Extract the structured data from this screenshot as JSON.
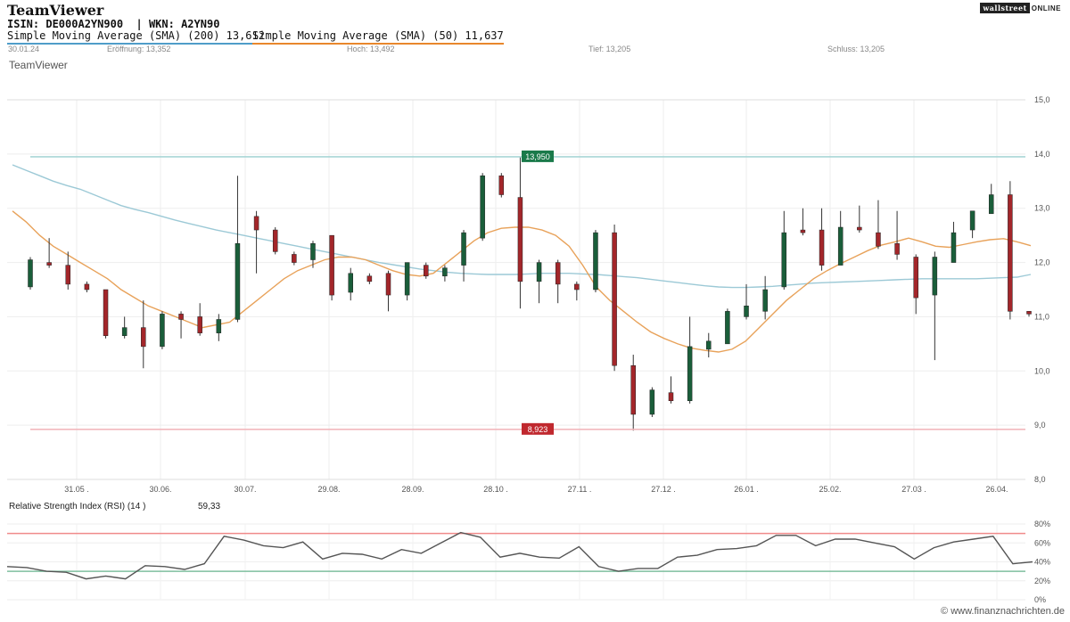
{
  "header": {
    "title": "TeamViewer",
    "isin_line": "ISIN: DE000A2YN900  | WKN: A2YN90",
    "sma200_label": "Simple Moving Average (SMA) (200) 13,612",
    "sma50_label": "Simple Moving Average (SMA) (50) 11,637",
    "subtitle": "TeamViewer",
    "ohlc": {
      "date": "30.01.24",
      "open": "Eröffnung: 13,352",
      "high": "Hoch: 13,492",
      "low": "Tief: 13,205",
      "close": "Schluss: 13,205"
    }
  },
  "brand": {
    "part1": "wallstreet",
    "part2": "ONLINE"
  },
  "rsi": {
    "label": "Relative Strength Index (RSI) (14 )",
    "value": "59,33"
  },
  "watermark": "© www.finanznachrichten.de",
  "colors": {
    "up": "#1a5e3a",
    "down": "#a3262a",
    "sma200": "#9cc9d6",
    "sma50": "#e8a25a",
    "high_line": "#a9d6d6",
    "low_line": "#f2b8bd",
    "rsi_line": "#555555",
    "rsi_upper": "#f08a8a",
    "rsi_lower": "#7fbf9f"
  },
  "chart_data": [
    {
      "type": "candlestick",
      "title": "TeamViewer",
      "ylim": [
        8.0,
        15.0
      ],
      "y_ticks": [
        "8,0",
        "9,0",
        "10,0",
        "11,0",
        "12,0",
        "13,0",
        "14,0",
        "15,0"
      ],
      "x_ticks": [
        "31.05 .",
        "30.06.",
        "30.07.",
        "29.08.",
        "28.09.",
        "28.10 .",
        "27.11 .",
        "27.12 .",
        "26.01 .",
        "25.02.",
        "27.03 .",
        "26.04."
      ],
      "grid": true,
      "high_line": {
        "value": 13.95,
        "label": "13,950"
      },
      "low_line": {
        "value": 8.923,
        "label": "8,923"
      },
      "candles": [
        [
          11.55,
          12.05,
          11.5,
          12.1
        ],
        [
          12.0,
          11.95,
          11.9,
          12.45
        ],
        [
          11.95,
          11.6,
          11.5,
          12.2
        ],
        [
          11.6,
          11.5,
          11.45,
          11.65
        ],
        [
          11.5,
          10.65,
          10.6,
          11.5
        ],
        [
          10.65,
          10.8,
          10.6,
          11.0
        ],
        [
          10.8,
          10.45,
          10.05,
          11.3
        ],
        [
          10.45,
          11.05,
          10.4,
          11.1
        ],
        [
          11.05,
          10.95,
          10.6,
          11.1
        ],
        [
          11.0,
          10.7,
          10.65,
          11.25
        ],
        [
          10.7,
          10.95,
          10.55,
          11.05
        ],
        [
          10.95,
          12.35,
          10.9,
          13.6
        ],
        [
          12.85,
          12.6,
          11.8,
          12.95
        ],
        [
          12.6,
          12.2,
          12.15,
          12.65
        ],
        [
          12.15,
          12.0,
          11.95,
          12.2
        ],
        [
          12.05,
          12.35,
          11.9,
          12.4
        ],
        [
          12.5,
          11.4,
          11.3,
          12.5
        ],
        [
          11.45,
          11.8,
          11.3,
          11.9
        ],
        [
          11.75,
          11.65,
          11.6,
          11.8
        ],
        [
          11.8,
          11.4,
          11.1,
          11.85
        ],
        [
          11.4,
          12.0,
          11.3,
          12.0
        ],
        [
          11.95,
          11.75,
          11.7,
          12.0
        ],
        [
          11.75,
          11.9,
          11.65,
          11.95
        ],
        [
          11.95,
          12.55,
          11.65,
          12.6
        ],
        [
          12.45,
          13.6,
          12.4,
          13.65
        ],
        [
          13.6,
          13.25,
          13.2,
          13.65
        ],
        [
          13.2,
          11.65,
          11.15,
          13.95
        ],
        [
          11.65,
          12.0,
          11.25,
          12.05
        ],
        [
          12.0,
          11.6,
          11.25,
          12.05
        ],
        [
          11.6,
          11.5,
          11.3,
          11.65
        ],
        [
          11.5,
          12.55,
          11.45,
          12.6
        ],
        [
          12.55,
          10.1,
          10.0,
          12.7
        ],
        [
          10.1,
          9.2,
          8.9,
          10.3
        ],
        [
          9.2,
          9.65,
          9.15,
          9.7
        ],
        [
          9.6,
          9.45,
          9.4,
          9.9
        ],
        [
          9.45,
          10.45,
          9.4,
          11.0
        ],
        [
          10.4,
          10.55,
          10.25,
          10.7
        ],
        [
          10.5,
          11.1,
          10.5,
          11.15
        ],
        [
          11.0,
          11.2,
          10.95,
          11.6
        ],
        [
          11.1,
          11.5,
          10.95,
          11.75
        ],
        [
          11.55,
          12.55,
          11.5,
          12.95
        ],
        [
          12.6,
          12.55,
          12.5,
          13.0
        ],
        [
          12.6,
          11.95,
          11.85,
          13.0
        ],
        [
          11.95,
          12.65,
          11.95,
          12.95
        ],
        [
          12.65,
          12.6,
          12.55,
          13.05
        ],
        [
          12.55,
          12.3,
          12.25,
          13.15
        ],
        [
          12.35,
          12.15,
          12.05,
          12.95
        ],
        [
          12.1,
          11.35,
          11.05,
          12.15
        ],
        [
          11.4,
          12.1,
          10.2,
          12.2
        ],
        [
          12.0,
          12.55,
          12.0,
          12.75
        ],
        [
          12.6,
          12.95,
          12.45,
          12.95
        ],
        [
          12.9,
          13.25,
          12.9,
          13.45
        ],
        [
          13.25,
          11.1,
          10.95,
          13.5
        ],
        [
          11.1,
          11.05,
          11.0,
          11.1
        ]
      ],
      "series": [
        {
          "name": "Simple Moving Average (SMA) (200)",
          "values": [
            13.8,
            13.7,
            13.6,
            13.5,
            13.42,
            13.35,
            13.25,
            13.15,
            13.05,
            12.98,
            12.92,
            12.85,
            12.78,
            12.72,
            12.66,
            12.6,
            12.55,
            12.5,
            12.45,
            12.4,
            12.35,
            12.3,
            12.25,
            12.2,
            12.15,
            12.1,
            12.05,
            12.0,
            11.96,
            11.92,
            11.88,
            11.85,
            11.82,
            11.8,
            11.79,
            11.78,
            11.78,
            11.78,
            11.79,
            11.8,
            11.8,
            11.8,
            11.79,
            11.78,
            11.76,
            11.74,
            11.72,
            11.69,
            11.66,
            11.63,
            11.6,
            11.57,
            11.55,
            11.54,
            11.54,
            11.55,
            11.56,
            11.58,
            11.6,
            11.62,
            11.63,
            11.64,
            11.65,
            11.66,
            11.67,
            11.68,
            11.69,
            11.7,
            11.7,
            11.7,
            11.7,
            11.7,
            11.71,
            11.72,
            11.73,
            11.78
          ]
        },
        {
          "name": "Simple Moving Average (SMA) (50)",
          "values": [
            12.95,
            12.75,
            12.5,
            12.3,
            12.15,
            12.0,
            11.85,
            11.7,
            11.5,
            11.35,
            11.2,
            11.1,
            11.0,
            10.9,
            10.8,
            10.85,
            10.9,
            11.1,
            11.3,
            11.5,
            11.7,
            11.85,
            11.95,
            12.05,
            12.1,
            12.1,
            12.05,
            11.95,
            11.85,
            11.78,
            11.75,
            11.8,
            12.0,
            12.2,
            12.4,
            12.55,
            12.63,
            12.65,
            12.65,
            12.6,
            12.5,
            12.3,
            11.95,
            11.55,
            11.3,
            11.1,
            10.9,
            10.72,
            10.6,
            10.5,
            10.42,
            10.38,
            10.35,
            10.4,
            10.55,
            10.8,
            11.05,
            11.3,
            11.5,
            11.7,
            11.85,
            11.98,
            12.1,
            12.22,
            12.32,
            12.38,
            12.45,
            12.38,
            12.3,
            12.28,
            12.33,
            12.38,
            12.42,
            12.44,
            12.38,
            12.31
          ]
        }
      ]
    },
    {
      "type": "line",
      "title": "Relative Strength Index (RSI) (14 )",
      "ylim": [
        0,
        80
      ],
      "y_ticks": [
        "0%",
        "20%",
        "40%",
        "60%",
        "80%"
      ],
      "upper_band": 70,
      "lower_band": 30,
      "series": [
        {
          "name": "Relative Strength Index (RSI) (14 )",
          "values": [
            35,
            34,
            30,
            29,
            22,
            25,
            22,
            36,
            35,
            32,
            38,
            67,
            63,
            57,
            55,
            61,
            43,
            49,
            48,
            43,
            53,
            49,
            60,
            71,
            66,
            45,
            49,
            45,
            44,
            56,
            35,
            30,
            33,
            33,
            45,
            47,
            53,
            54,
            57,
            68,
            68,
            57,
            64,
            64,
            60,
            56,
            43,
            55,
            61,
            64,
            67,
            38,
            40
          ]
        }
      ]
    }
  ]
}
